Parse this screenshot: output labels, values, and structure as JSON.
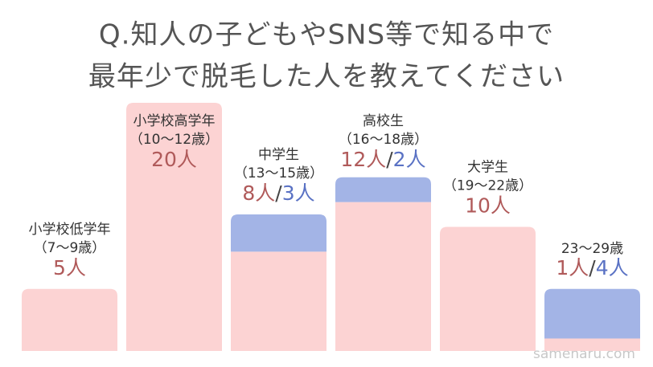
{
  "chart_data": {
    "type": "bar",
    "stacked": true,
    "title_lines": [
      "Q.知人の子どもやSNS等で知る中で",
      "最年少で脱毛した人を教えてください"
    ],
    "categories": [
      "小学校低学年",
      "小学校高学年",
      "中学生",
      "高校生",
      "大学生",
      "23〜29歳"
    ],
    "category_notes": [
      "（7〜9歳）",
      "（10〜12歳）",
      "（13〜15歳）",
      "（16〜18歳）",
      "（19〜22歳）",
      null
    ],
    "separator": "/",
    "series": [
      {
        "color": "#fcd3d3",
        "label_color": "#b05a5a",
        "values": [
          5,
          20,
          8,
          12,
          10,
          1
        ],
        "value_labels": [
          "5人",
          "20人",
          "8人",
          "12人",
          "10人",
          "1人"
        ]
      },
      {
        "color": "#a3b4e6",
        "label_color": "#5a72c4",
        "values": [
          null,
          null,
          3,
          2,
          null,
          4
        ],
        "value_labels": [
          null,
          null,
          "3人",
          "2人",
          null,
          "4人"
        ]
      }
    ],
    "watermark": "samenaru.com"
  }
}
